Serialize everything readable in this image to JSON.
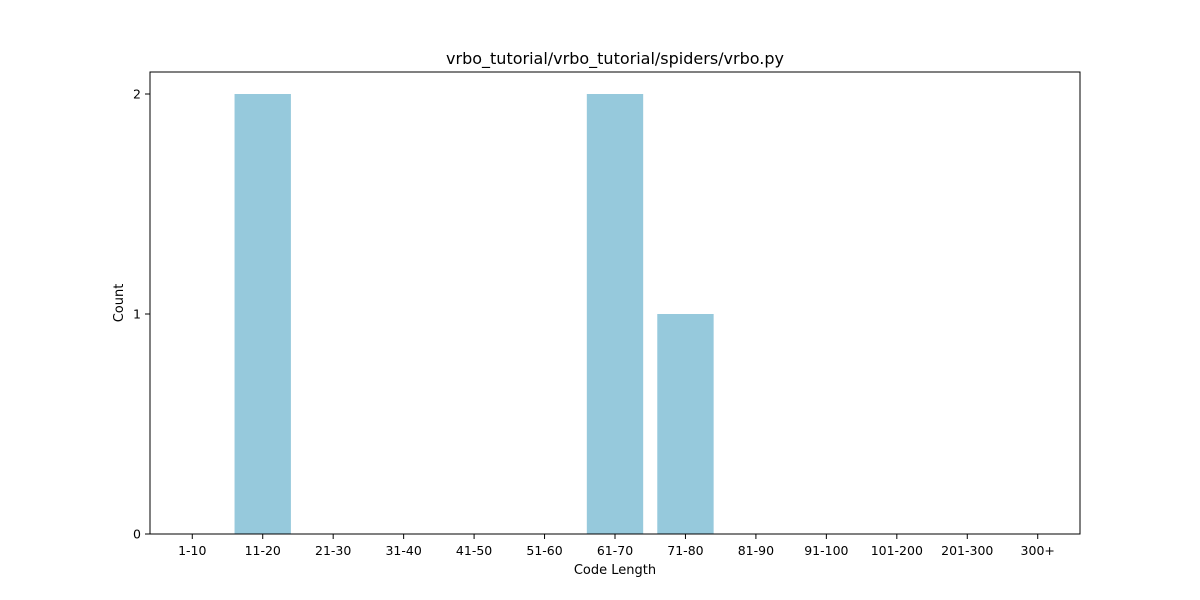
{
  "colors": {
    "bar": "#96c9dc",
    "axis": "#000000",
    "background": "#ffffff"
  },
  "chart_data": {
    "type": "bar",
    "title": "vrbo_tutorial/vrbo_tutorial/spiders/vrbo.py",
    "xlabel": "Code Length",
    "ylabel": "Count",
    "categories": [
      "1-10",
      "11-20",
      "21-30",
      "31-40",
      "41-50",
      "51-60",
      "61-70",
      "71-80",
      "81-90",
      "91-100",
      "101-200",
      "201-300",
      "300+"
    ],
    "values": [
      0,
      2,
      0,
      0,
      0,
      0,
      2,
      1,
      0,
      0,
      0,
      0,
      0
    ],
    "ylim": [
      0,
      2.1
    ],
    "yticks": [
      0,
      1,
      2
    ],
    "ytick_labels": [
      "0",
      "1",
      "2"
    ],
    "grid": false,
    "legend": "none"
  }
}
